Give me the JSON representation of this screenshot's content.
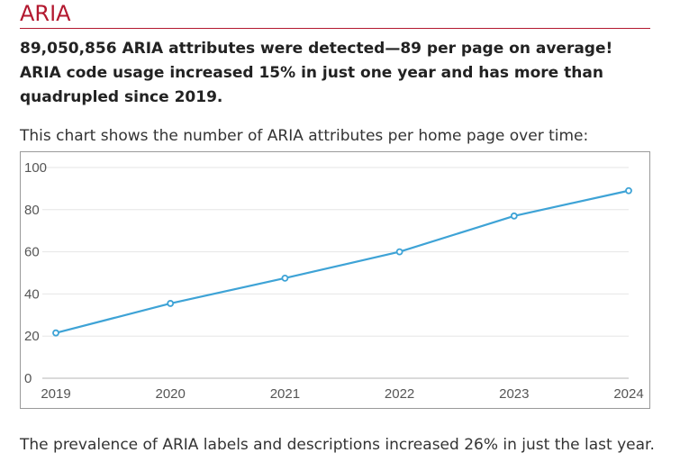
{
  "section": {
    "title": "ARIA",
    "lead": "89,050,856 ARIA attributes were detected—89 per page on average! ARIA code usage increased 15% in just one year and has more than quadrupled since 2019.",
    "intro": "This chart shows the number of ARIA attributes per home page over time:",
    "footnote": "The prevalence of ARIA labels and descriptions increased 26% in just the last year."
  },
  "colors": {
    "heading": "#b3182f",
    "line": "#3ea3d6",
    "grid": "#e6e6e6"
  },
  "chart_data": {
    "type": "line",
    "x": [
      "2019",
      "2020",
      "2021",
      "2022",
      "2023",
      "2024"
    ],
    "series": [
      {
        "values": [
          21.5,
          35.5,
          47.5,
          60,
          77,
          89
        ]
      }
    ],
    "ylim": [
      0,
      100
    ],
    "yticks": [
      0,
      20,
      40,
      60,
      80,
      100
    ],
    "xlabel": "",
    "ylabel": "",
    "grid": true,
    "legend": "none"
  }
}
